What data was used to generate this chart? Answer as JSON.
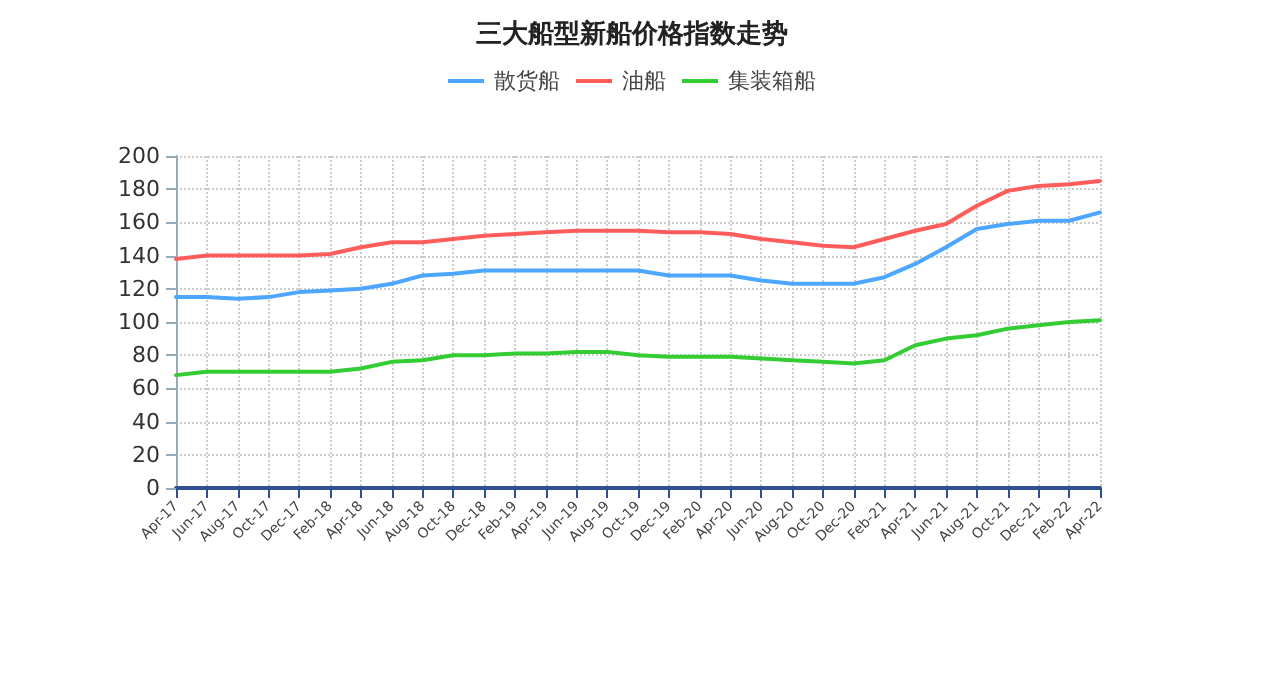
{
  "chart_data": {
    "type": "line",
    "title": "三大船型新船价格指数走势",
    "categories": [
      "Apr-17",
      "Jun-17",
      "Aug-17",
      "Oct-17",
      "Dec-17",
      "Feb-18",
      "Apr-18",
      "Jun-18",
      "Aug-18",
      "Oct-18",
      "Dec-18",
      "Feb-19",
      "Apr-19",
      "Jun-19",
      "Aug-19",
      "Oct-19",
      "Dec-19",
      "Feb-20",
      "Apr-20",
      "Jun-20",
      "Aug-20",
      "Oct-20",
      "Dec-20",
      "Feb-21",
      "Apr-21",
      "Jun-21",
      "Aug-21",
      "Oct-21",
      "Dec-21",
      "Feb-22",
      "Apr-22"
    ],
    "series": [
      {
        "name": "散货船",
        "color": "#4da6ff",
        "values": [
          115,
          115,
          114,
          115,
          118,
          119,
          120,
          123,
          128,
          129,
          131,
          131,
          131,
          131,
          131,
          131,
          128,
          128,
          128,
          125,
          123,
          123,
          123,
          127,
          135,
          145,
          156,
          159,
          161,
          161,
          166
        ]
      },
      {
        "name": "油船",
        "color": "#ff5c5c",
        "values": [
          138,
          140,
          140,
          140,
          140,
          141,
          145,
          148,
          148,
          150,
          152,
          153,
          154,
          155,
          155,
          155,
          154,
          154,
          153,
          150,
          148,
          146,
          145,
          150,
          155,
          159,
          170,
          179,
          182,
          183,
          185
        ]
      },
      {
        "name": "集装箱船",
        "color": "#33cc33",
        "values": [
          68,
          70,
          70,
          70,
          70,
          70,
          72,
          76,
          77,
          80,
          80,
          81,
          81,
          82,
          82,
          80,
          79,
          79,
          79,
          78,
          77,
          76,
          75,
          77,
          86,
          90,
          92,
          96,
          98,
          100,
          101
        ]
      }
    ],
    "ylim": [
      0,
      200
    ],
    "yticks": [
      0,
      20,
      40,
      60,
      80,
      100,
      120,
      140,
      160,
      180,
      200
    ],
    "grid": true,
    "legend": "top",
    "marker": "none",
    "line_style": "solid"
  }
}
